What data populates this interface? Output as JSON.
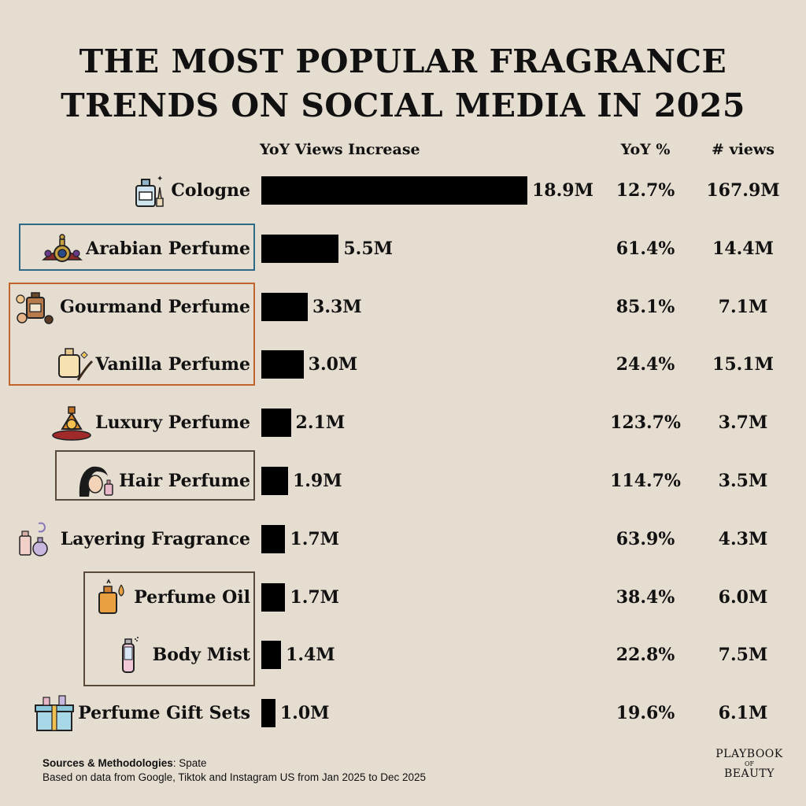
{
  "title_line1": "THE MOST POPULAR FRAGRANCE",
  "title_line2": "TRENDS ON SOCIAL MEDIA IN 2025",
  "headers": {
    "increase": "YoY Views Increase",
    "yoy": "YoY %",
    "views": "# views"
  },
  "chart_data": {
    "type": "bar",
    "orientation": "horizontal",
    "title": "THE MOST POPULAR FRAGRANCE TRENDS ON SOCIAL MEDIA IN 2025",
    "xlabel": "YoY Views Increase",
    "categories": [
      "Cologne",
      "Arabian Perfume",
      "Gourmand Perfume",
      "Vanilla Perfume",
      "Luxury Perfume",
      "Hair Perfume",
      "Layering Fragrance",
      "Perfume Oil",
      "Body Mist",
      "Perfume Gift Sets"
    ],
    "series": [
      {
        "name": "YoY Views Increase",
        "values": [
          18.9,
          5.5,
          3.3,
          3.0,
          2.1,
          1.9,
          1.7,
          1.7,
          1.4,
          1.0
        ]
      }
    ],
    "bar_labels": [
      "18.9M",
      "5.5M",
      "3.3M",
      "3.0M",
      "2.1M",
      "1.9M",
      "1.7M",
      "1.7M",
      "1.4M",
      "1.0M"
    ],
    "yoy_percent": [
      "12.7%",
      "61.4%",
      "85.1%",
      "24.4%",
      "123.7%",
      "114.7%",
      "63.9%",
      "38.4%",
      "22.8%",
      "19.6%"
    ],
    "total_views": [
      "167.9M",
      "14.4M",
      "7.1M",
      "15.1M",
      "3.7M",
      "3.5M",
      "4.3M",
      "6.0M",
      "7.5M",
      "6.1M"
    ],
    "bar_color": "#000000",
    "icons": [
      "cologne-bottle-icon",
      "arabian-perfume-icon",
      "gourmand-perfume-icon",
      "vanilla-perfume-icon",
      "luxury-perfume-icon",
      "hair-perfume-icon",
      "layering-fragrance-icon",
      "perfume-oil-icon",
      "body-mist-icon",
      "gift-set-icon"
    ],
    "highlight_boxes": [
      {
        "rows": [
          "Arabian Perfume"
        ],
        "color": "#2d6a8a"
      },
      {
        "rows": [
          "Gourmand Perfume",
          "Vanilla Perfume"
        ],
        "color": "#c0642c"
      },
      {
        "rows": [
          "Hair Perfume"
        ],
        "color": "#5a4a3a"
      },
      {
        "rows": [
          "Perfume Oil",
          "Body Mist"
        ],
        "color": "#5a4a3a"
      }
    ]
  },
  "footer": {
    "sources_label": "Sources & Methodologies",
    "sources_value": ": Spate",
    "note": "Based on data from Google, Tiktok and Instagram US from Jan 2025 to Dec 2025"
  },
  "logo": {
    "line1": "PLAYBOOK",
    "line2": "OF",
    "line3": "BEAUTY"
  }
}
